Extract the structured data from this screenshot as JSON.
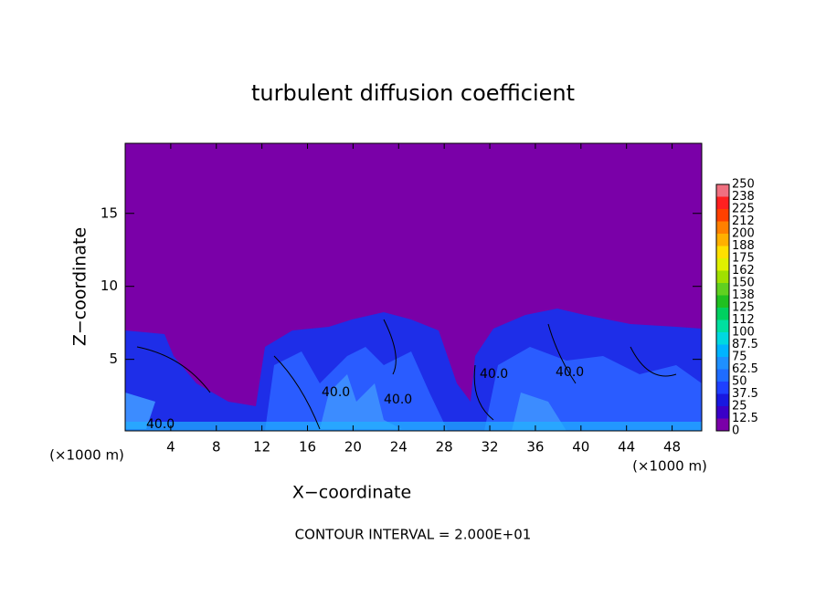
{
  "chart_data": {
    "type": "contour",
    "title": "turbulent diffusion coefficient",
    "xlabel": "X−coordinate",
    "ylabel": "Z−coordinate",
    "x_unit": "(×1000 m)",
    "y_unit": "(×1000 m)",
    "annotation": "CONTOUR INTERVAL = 2.000E+01",
    "contour_labels": [
      "40.0",
      "40.0",
      "40.0",
      "40.0",
      "40.0"
    ],
    "xlim": [
      0,
      50.6
    ],
    "xticks": [
      4,
      8,
      12,
      16,
      20,
      24,
      28,
      32,
      36,
      40,
      44,
      48
    ],
    "ylim": [
      0.1,
      19.8
    ],
    "yticks": [
      5,
      10,
      15
    ],
    "levels": [
      0,
      12.5,
      25,
      37.5,
      50,
      62.5,
      75,
      87.5,
      100,
      112,
      125,
      138,
      150,
      162,
      175,
      188,
      200,
      212,
      225,
      238,
      250
    ],
    "colors": [
      "#7a00a8",
      "#3a00c8",
      "#1818e0",
      "#1e40ff",
      "#1e6cff",
      "#1e90ff",
      "#00b4ff",
      "#00d8e0",
      "#00e0a0",
      "#00d060",
      "#20c020",
      "#60d020",
      "#a0e000",
      "#e0f000",
      "#ffe000",
      "#ffb000",
      "#ff8000",
      "#ff4000",
      "#ff2020",
      "#f07080"
    ]
  }
}
